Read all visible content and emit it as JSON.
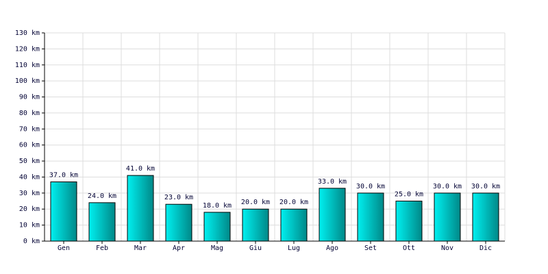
{
  "chart_data": {
    "type": "bar",
    "categories": [
      "Gen",
      "Feb",
      "Mar",
      "Apr",
      "Mag",
      "Giu",
      "Lug",
      "Ago",
      "Set",
      "Ott",
      "Nov",
      "Dic"
    ],
    "values": [
      37,
      24,
      41,
      23,
      18,
      20,
      20,
      33,
      30,
      25,
      30,
      30
    ],
    "value_labels": [
      "37.0 km",
      "24.0 km",
      "41.0 km",
      "23.0 km",
      "18.0 km",
      "20.0 km",
      "20.0 km",
      "33.0 km",
      "30.0 km",
      "25.0 km",
      "30.0 km",
      "30.0 km"
    ],
    "color": "#00cccc",
    "ylim": [
      0,
      130
    ],
    "yticks": [
      {
        "value": 0,
        "label": "0 km"
      },
      {
        "value": 10,
        "label": "10 km"
      },
      {
        "value": 20,
        "label": "20 km"
      },
      {
        "value": 30,
        "label": "30 km"
      },
      {
        "value": 40,
        "label": "40 km"
      },
      {
        "value": 50,
        "label": "50 km"
      },
      {
        "value": 60,
        "label": "60 km"
      },
      {
        "value": 70,
        "label": "70 km"
      },
      {
        "value": 80,
        "label": "80 km"
      },
      {
        "value": 90,
        "label": "90 km"
      },
      {
        "value": 100,
        "label": "100 km"
      },
      {
        "value": 110,
        "label": "110 km"
      },
      {
        "value": 120,
        "label": "120 km"
      },
      {
        "value": 130,
        "label": "130 km"
      }
    ],
    "grid": true
  }
}
